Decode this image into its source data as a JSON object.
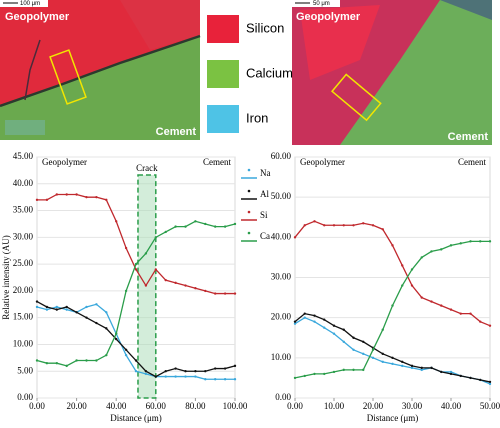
{
  "images": [
    {
      "labels": [
        "Geopolymer",
        "Cement",
        "100 μm"
      ]
    },
    {
      "labels": [
        "Geopolymer",
        "Cement",
        "50 μm"
      ]
    }
  ],
  "map_legend": [
    {
      "name": "Silicon",
      "color": "#e8223a"
    },
    {
      "name": "Calcium",
      "color": "#7bc242"
    },
    {
      "name": "Iron",
      "color": "#4ec3e6"
    }
  ],
  "chart_data": [
    {
      "type": "line",
      "ylabel": "Relative intensity (AU)",
      "xlabel": "Distance (μm)",
      "annotations": [
        "Geopolymer",
        "Cement"
      ],
      "crack": {
        "label": "Crack",
        "x": [
          51,
          60
        ]
      },
      "legend": "outside right",
      "x": [
        0,
        5,
        10,
        15,
        20,
        25,
        30,
        35,
        40,
        45,
        50,
        55,
        60,
        65,
        70,
        75,
        80,
        85,
        90,
        95,
        100
      ],
      "series": [
        {
          "name": "Na",
          "color": "#3aa8dc",
          "values": [
            17,
            16.5,
            17,
            16.5,
            16,
            17,
            17.5,
            16,
            12,
            8,
            5,
            4.5,
            4,
            4,
            4,
            4,
            4,
            3.5,
            3.5,
            3.5,
            3.5
          ]
        },
        {
          "name": "Al",
          "color": "#111111",
          "values": [
            18,
            17,
            16.5,
            17,
            16,
            15,
            14,
            13,
            11,
            9,
            7,
            5,
            4,
            5,
            5.5,
            5,
            5,
            5,
            5.5,
            5.5,
            6
          ]
        },
        {
          "name": "Si",
          "color": "#c0282d",
          "values": [
            37,
            37,
            38,
            38,
            38,
            37.5,
            37.5,
            37,
            33,
            28,
            24,
            21,
            24,
            22,
            21.5,
            21,
            20.5,
            20,
            19.5,
            19.5,
            19.5
          ]
        },
        {
          "name": "Ca",
          "color": "#2a9d4a",
          "values": [
            7,
            6.5,
            6.5,
            6,
            7,
            7,
            7,
            8,
            12,
            20,
            25,
            27,
            30,
            31,
            32,
            32,
            33,
            32.5,
            32,
            32,
            32.5
          ]
        }
      ],
      "xlim": [
        0,
        100
      ],
      "ylim": [
        0,
        45
      ],
      "xticks": [
        {
          "value": 0,
          "label": "0.00"
        },
        {
          "value": 20,
          "label": "20.00"
        },
        {
          "value": 40,
          "label": "40.00"
        },
        {
          "value": 60,
          "label": "60.00"
        },
        {
          "value": 80,
          "label": "80.00"
        },
        {
          "value": 100,
          "label": "100.00"
        }
      ],
      "yticks": [
        {
          "value": 0,
          "label": "0.00"
        },
        {
          "value": 5,
          "label": "5.00"
        },
        {
          "value": 10,
          "label": "10.00"
        },
        {
          "value": 15,
          "label": "15.00"
        },
        {
          "value": 20,
          "label": "20.00"
        },
        {
          "value": 25,
          "label": "25.00"
        },
        {
          "value": 30,
          "label": "30.00"
        },
        {
          "value": 35,
          "label": "35.00"
        },
        {
          "value": 40,
          "label": "40.00"
        },
        {
          "value": 45,
          "label": "45.00"
        }
      ]
    },
    {
      "type": "line",
      "xlabel": "Distance (μm)",
      "annotations": [
        "Geopolymer",
        "Cement"
      ],
      "x": [
        0,
        2.5,
        5,
        7.5,
        10,
        12.5,
        15,
        17.5,
        20,
        22.5,
        25,
        27.5,
        30,
        32.5,
        35,
        37.5,
        40,
        42.5,
        45,
        47.5,
        50
      ],
      "series": [
        {
          "color": "#3aa8dc",
          "values": [
            18.5,
            20,
            19,
            17.5,
            16,
            14,
            12,
            11,
            10,
            9,
            8.5,
            8,
            7.5,
            7,
            7.5,
            6.5,
            6.5,
            5.5,
            5,
            4.5,
            3.5
          ]
        },
        {
          "color": "#111111",
          "values": [
            19,
            21,
            20.5,
            19.5,
            18,
            17,
            15,
            14,
            12.5,
            11,
            10,
            9,
            8,
            7.5,
            7.5,
            6.5,
            6,
            5.5,
            5,
            4.5,
            4
          ]
        },
        {
          "color": "#c0282d",
          "values": [
            40,
            43,
            44,
            43,
            43,
            43,
            43,
            43.5,
            43,
            42,
            38,
            33,
            28,
            25,
            24,
            23,
            22,
            21,
            21,
            19,
            18
          ]
        },
        {
          "color": "#2a9d4a",
          "values": [
            5,
            5.5,
            6,
            6,
            6.5,
            7,
            7,
            7,
            12,
            17,
            23,
            28,
            32,
            35,
            36.5,
            37,
            38,
            38.5,
            39,
            39,
            39
          ]
        }
      ],
      "xlim": [
        0,
        50
      ],
      "ylim": [
        0,
        60
      ],
      "xticks": [
        {
          "value": 0,
          "label": "0.00"
        },
        {
          "value": 10,
          "label": "10.00"
        },
        {
          "value": 20,
          "label": "20.00"
        },
        {
          "value": 30,
          "label": "30.00"
        },
        {
          "value": 40,
          "label": "40.00"
        },
        {
          "value": 50,
          "label": "50.00"
        }
      ],
      "yticks": [
        {
          "value": 0,
          "label": "0.00"
        },
        {
          "value": 10,
          "label": "10.00"
        },
        {
          "value": 20,
          "label": "20.00"
        },
        {
          "value": 30,
          "label": "30.00"
        },
        {
          "value": 40,
          "label": "40.00"
        },
        {
          "value": 50,
          "label": "50.00"
        },
        {
          "value": 60,
          "label": "60.00"
        }
      ]
    }
  ]
}
